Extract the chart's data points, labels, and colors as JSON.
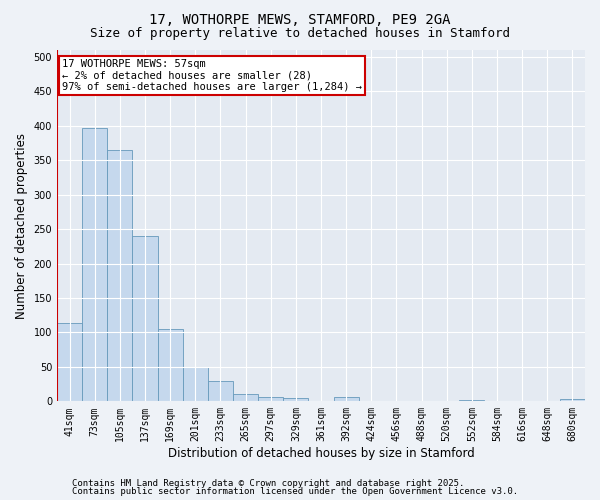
{
  "title1": "17, WOTHORPE MEWS, STAMFORD, PE9 2GA",
  "title2": "Size of property relative to detached houses in Stamford",
  "xlabel": "Distribution of detached houses by size in Stamford",
  "ylabel": "Number of detached properties",
  "categories": [
    "41sqm",
    "73sqm",
    "105sqm",
    "137sqm",
    "169sqm",
    "201sqm",
    "233sqm",
    "265sqm",
    "297sqm",
    "329sqm",
    "361sqm",
    "392sqm",
    "424sqm",
    "456sqm",
    "488sqm",
    "520sqm",
    "552sqm",
    "584sqm",
    "616sqm",
    "648sqm",
    "680sqm"
  ],
  "values": [
    113,
    397,
    365,
    240,
    105,
    50,
    29,
    10,
    7,
    5,
    0,
    7,
    0,
    0,
    0,
    0,
    2,
    0,
    0,
    0,
    3
  ],
  "bar_color": "#c5d8ed",
  "bar_edge_color": "#6699bb",
  "annotation_text": "17 WOTHORPE MEWS: 57sqm\n← 2% of detached houses are smaller (28)\n97% of semi-detached houses are larger (1,284) →",
  "annotation_box_color": "white",
  "annotation_box_edge": "#cc0000",
  "red_line_x": 0,
  "ylim": [
    0,
    510
  ],
  "yticks": [
    0,
    50,
    100,
    150,
    200,
    250,
    300,
    350,
    400,
    450,
    500
  ],
  "footer1": "Contains HM Land Registry data © Crown copyright and database right 2025.",
  "footer2": "Contains public sector information licensed under the Open Government Licence v3.0.",
  "bg_color": "#eef2f7",
  "plot_bg_color": "#e4eaf2",
  "grid_color": "#ffffff",
  "title_fontsize": 10,
  "subtitle_fontsize": 9,
  "tick_fontsize": 7,
  "label_fontsize": 8.5,
  "footer_fontsize": 6.5,
  "red_line_color": "#cc0000"
}
